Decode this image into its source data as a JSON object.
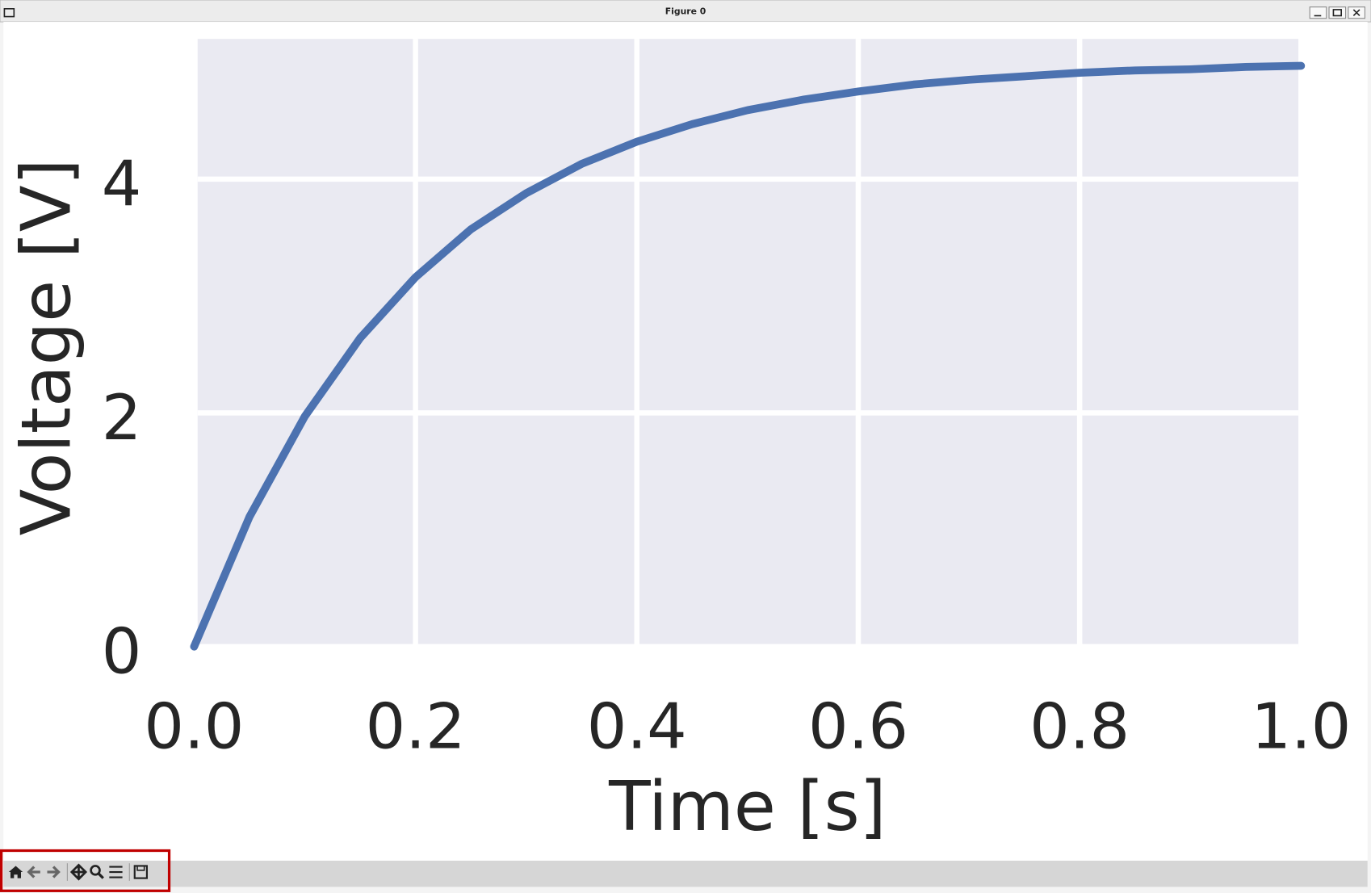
{
  "window_title": "Figure 0",
  "chart_data": {
    "type": "line",
    "xlabel": "Time [s]",
    "ylabel": "Voltage [V]",
    "x": [
      0,
      0.05,
      0.1,
      0.15,
      0.2,
      0.25,
      0.3,
      0.35,
      0.4,
      0.45,
      0.5,
      0.55,
      0.6,
      0.65,
      0.7,
      0.75,
      0.8,
      0.85,
      0.9,
      0.95,
      1.0
    ],
    "series": [
      {
        "name": "Voltage",
        "color": "#4c72b0",
        "values": [
          0,
          1.11,
          1.97,
          2.64,
          3.16,
          3.57,
          3.88,
          4.13,
          4.32,
          4.47,
          4.59,
          4.68,
          4.75,
          4.81,
          4.85,
          4.88,
          4.91,
          4.93,
          4.94,
          4.96,
          4.97
        ]
      }
    ],
    "xlim": [
      0,
      1
    ],
    "ylim": [
      0,
      5.2
    ],
    "xticks": [
      {
        "value": 0,
        "label": "0.0"
      },
      {
        "value": 0.2,
        "label": "0.2"
      },
      {
        "value": 0.4,
        "label": "0.4"
      },
      {
        "value": 0.6,
        "label": "0.6"
      },
      {
        "value": 0.8,
        "label": "0.8"
      },
      {
        "value": 1,
        "label": "1.0"
      }
    ],
    "yticks": [
      0,
      2,
      4
    ],
    "grid": true,
    "background": "#eaeaf2"
  }
}
